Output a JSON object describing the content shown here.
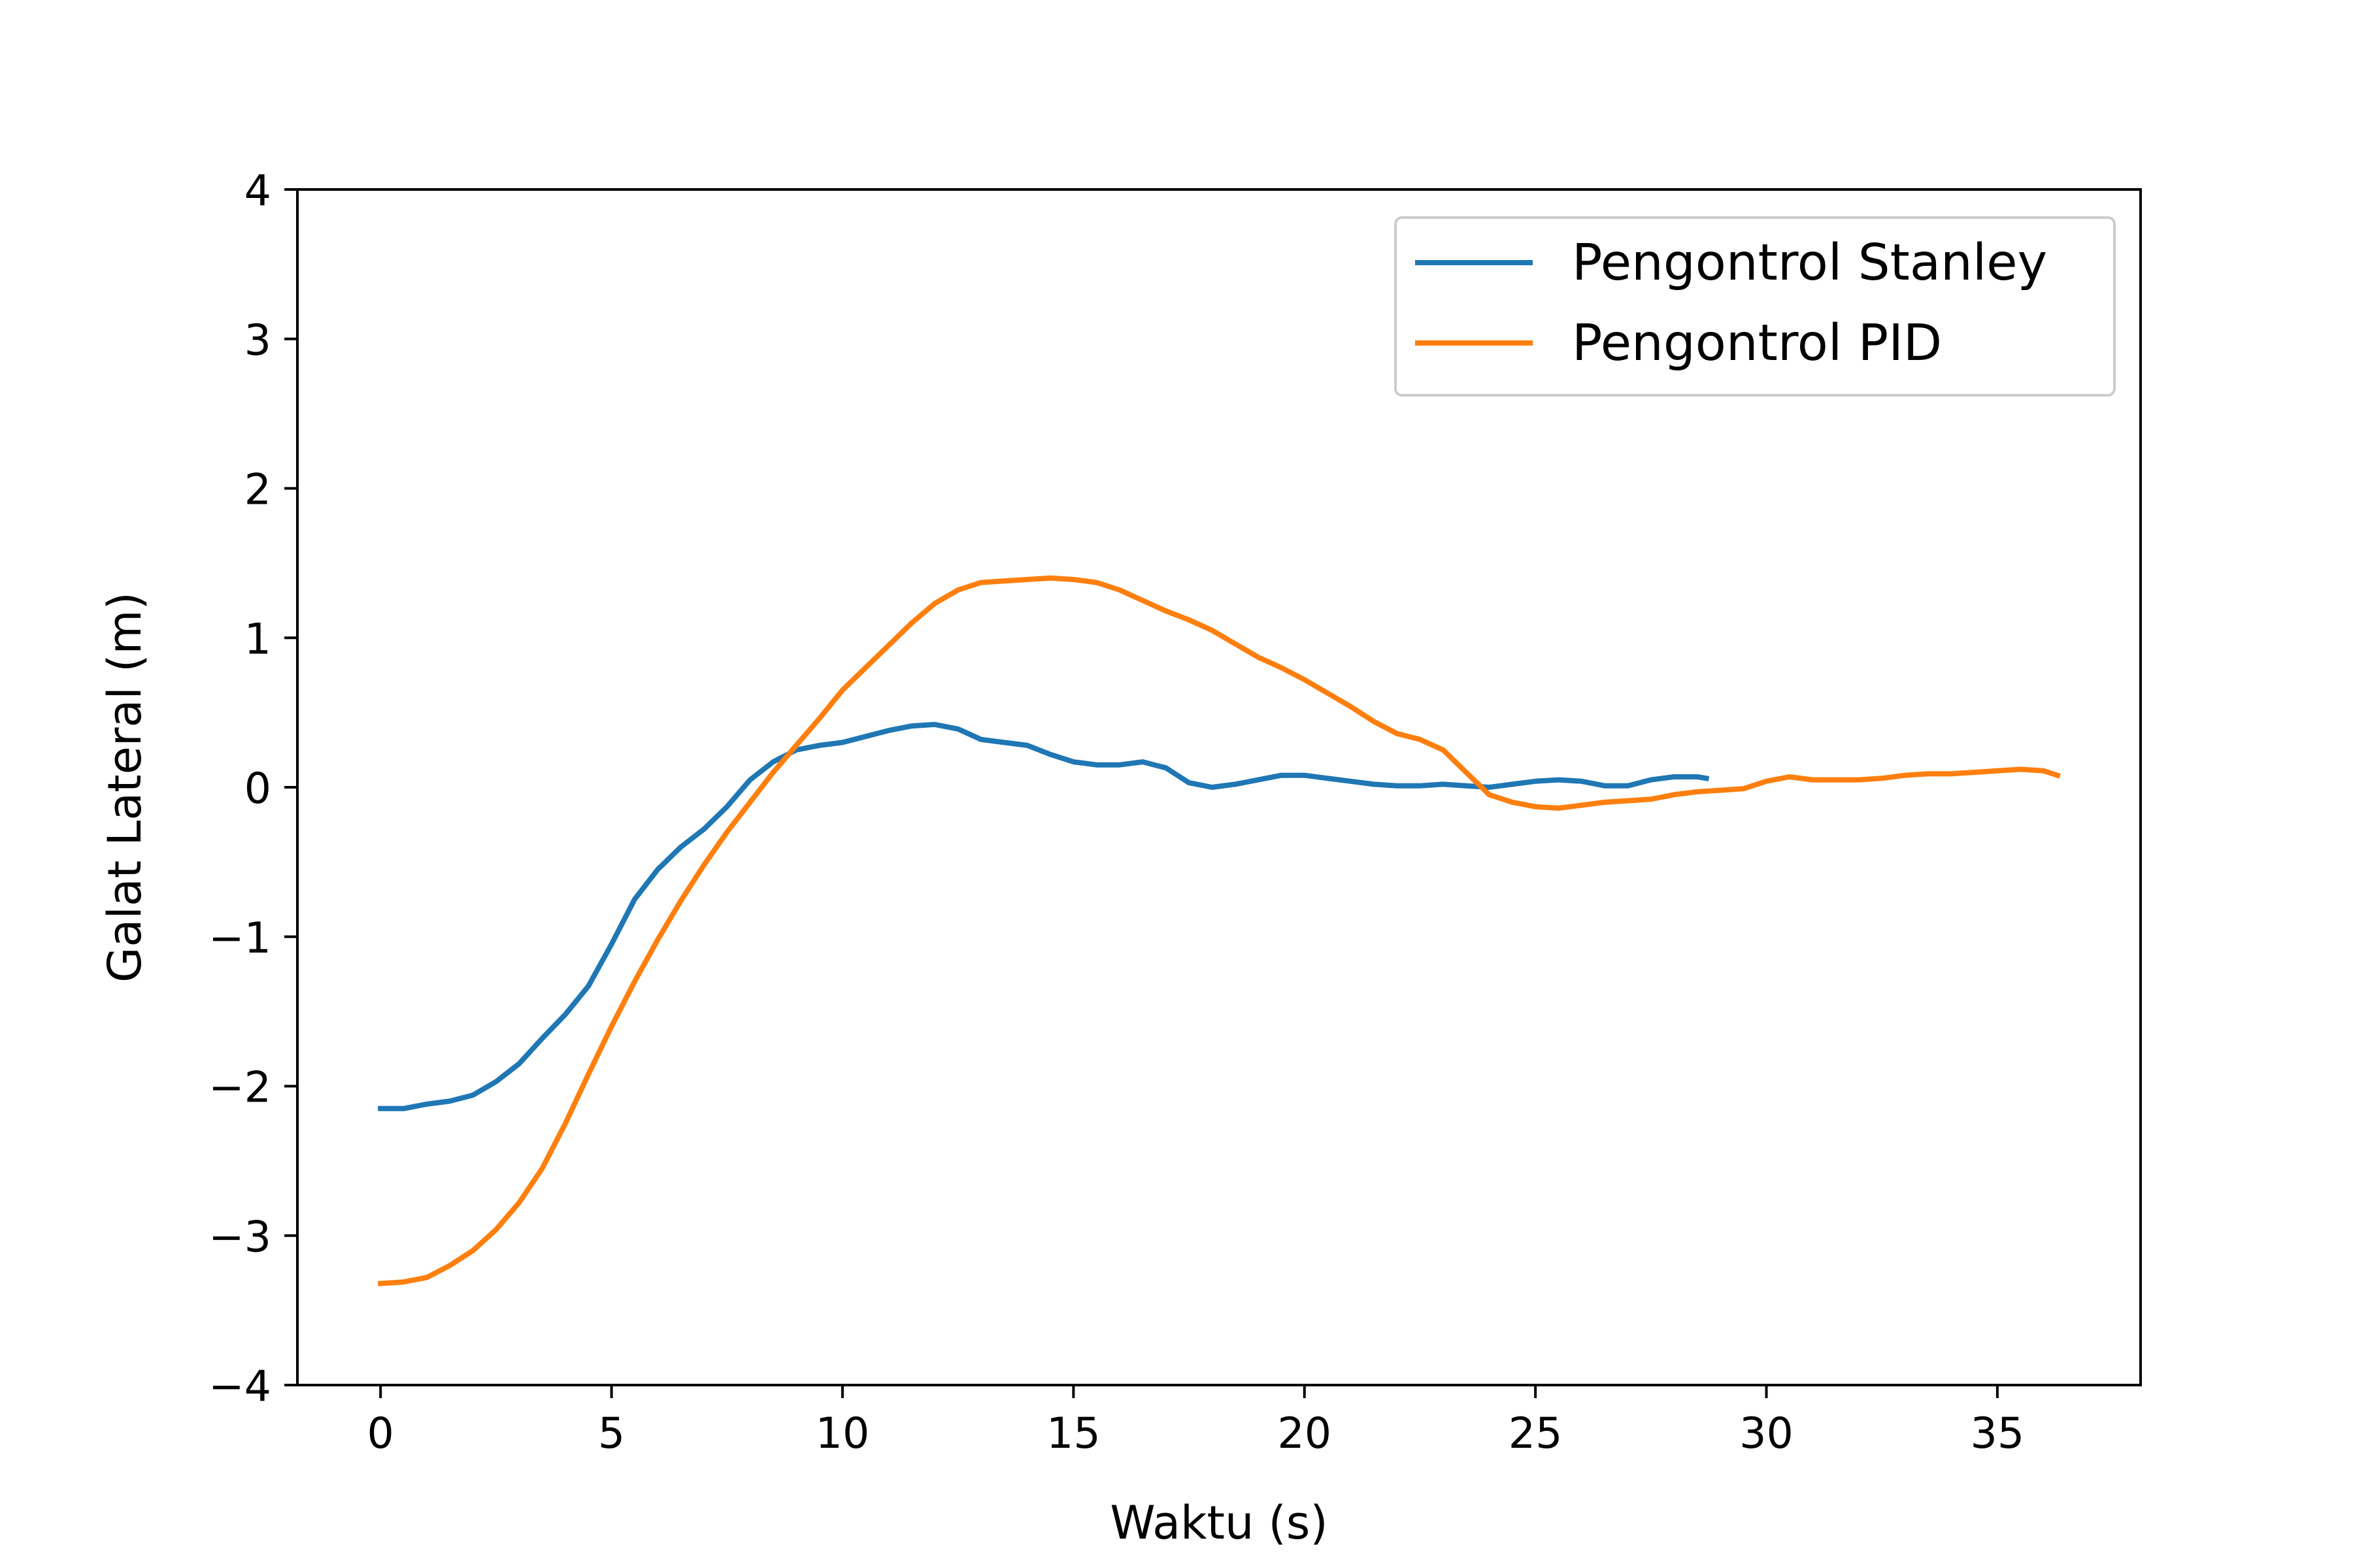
{
  "chart_data": {
    "type": "line",
    "title": "",
    "xlabel": "Waktu (s)",
    "ylabel": "Galat Lateral (m)",
    "xlim": [
      -1.8,
      38.1
    ],
    "ylim": [
      -4,
      4
    ],
    "xticks": [
      0,
      5,
      10,
      15,
      20,
      25,
      30,
      35
    ],
    "yticks": [
      -4,
      -3,
      -2,
      -1,
      0,
      1,
      2,
      3,
      4
    ],
    "xtick_labels": [
      "0",
      "5",
      "10",
      "15",
      "20",
      "25",
      "30",
      "35"
    ],
    "ytick_labels": [
      "−4",
      "−3",
      "−2",
      "−1",
      "0",
      "1",
      "2",
      "3",
      "4"
    ],
    "grid": false,
    "legend_position": "top-right",
    "series": [
      {
        "name": "Pengontrol Stanley",
        "color": "#1f77b4",
        "points": [
          [
            0,
            -2.15
          ],
          [
            0.5,
            -2.15
          ],
          [
            1,
            -2.12
          ],
          [
            1.5,
            -2.1
          ],
          [
            2,
            -2.06
          ],
          [
            2.5,
            -1.97
          ],
          [
            3,
            -1.85
          ],
          [
            3.5,
            -1.68
          ],
          [
            4,
            -1.52
          ],
          [
            4.5,
            -1.33
          ],
          [
            5,
            -1.05
          ],
          [
            5.5,
            -0.75
          ],
          [
            6,
            -0.55
          ],
          [
            6.5,
            -0.4
          ],
          [
            7,
            -0.28
          ],
          [
            7.5,
            -0.13
          ],
          [
            8,
            0.05
          ],
          [
            8.5,
            0.17
          ],
          [
            9,
            0.25
          ],
          [
            9.5,
            0.28
          ],
          [
            10,
            0.3
          ],
          [
            10.5,
            0.34
          ],
          [
            11,
            0.38
          ],
          [
            11.5,
            0.41
          ],
          [
            12,
            0.42
          ],
          [
            12.5,
            0.39
          ],
          [
            13,
            0.32
          ],
          [
            13.5,
            0.3
          ],
          [
            14,
            0.28
          ],
          [
            14.5,
            0.22
          ],
          [
            15,
            0.17
          ],
          [
            15.5,
            0.15
          ],
          [
            16,
            0.15
          ],
          [
            16.5,
            0.17
          ],
          [
            17,
            0.13
          ],
          [
            17.5,
            0.03
          ],
          [
            18,
            0.0
          ],
          [
            18.5,
            0.02
          ],
          [
            19,
            0.05
          ],
          [
            19.5,
            0.08
          ],
          [
            20,
            0.08
          ],
          [
            20.5,
            0.06
          ],
          [
            21,
            0.04
          ],
          [
            21.5,
            0.02
          ],
          [
            22,
            0.01
          ],
          [
            22.5,
            0.01
          ],
          [
            23,
            0.02
          ],
          [
            23.5,
            0.01
          ],
          [
            24,
            0.0
          ],
          [
            24.5,
            0.02
          ],
          [
            25,
            0.04
          ],
          [
            25.5,
            0.05
          ],
          [
            26,
            0.04
          ],
          [
            26.5,
            0.01
          ],
          [
            27,
            0.01
          ],
          [
            27.5,
            0.05
          ],
          [
            28,
            0.07
          ],
          [
            28.5,
            0.07
          ],
          [
            28.7,
            0.06
          ]
        ]
      },
      {
        "name": "Pengontrol PID",
        "color": "#ff7f0e",
        "points": [
          [
            0,
            -3.32
          ],
          [
            0.5,
            -3.31
          ],
          [
            1,
            -3.28
          ],
          [
            1.5,
            -3.2
          ],
          [
            2,
            -3.1
          ],
          [
            2.5,
            -2.96
          ],
          [
            3,
            -2.78
          ],
          [
            3.5,
            -2.55
          ],
          [
            4,
            -2.25
          ],
          [
            4.5,
            -1.92
          ],
          [
            5,
            -1.6
          ],
          [
            5.5,
            -1.3
          ],
          [
            6,
            -1.02
          ],
          [
            6.5,
            -0.76
          ],
          [
            7,
            -0.52
          ],
          [
            7.5,
            -0.3
          ],
          [
            8,
            -0.1
          ],
          [
            8.5,
            0.1
          ],
          [
            9,
            0.28
          ],
          [
            9.5,
            0.46
          ],
          [
            10,
            0.65
          ],
          [
            10.5,
            0.8
          ],
          [
            11,
            0.95
          ],
          [
            11.5,
            1.1
          ],
          [
            12,
            1.23
          ],
          [
            12.5,
            1.32
          ],
          [
            13,
            1.37
          ],
          [
            13.5,
            1.38
          ],
          [
            14,
            1.39
          ],
          [
            14.5,
            1.4
          ],
          [
            15,
            1.39
          ],
          [
            15.5,
            1.37
          ],
          [
            16,
            1.32
          ],
          [
            16.5,
            1.25
          ],
          [
            17,
            1.18
          ],
          [
            17.5,
            1.12
          ],
          [
            18,
            1.05
          ],
          [
            18.5,
            0.96
          ],
          [
            19,
            0.87
          ],
          [
            19.5,
            0.8
          ],
          [
            20,
            0.72
          ],
          [
            20.5,
            0.63
          ],
          [
            21,
            0.54
          ],
          [
            21.5,
            0.44
          ],
          [
            22,
            0.36
          ],
          [
            22.5,
            0.32
          ],
          [
            23,
            0.25
          ],
          [
            23.5,
            0.1
          ],
          [
            24,
            -0.05
          ],
          [
            24.5,
            -0.1
          ],
          [
            25,
            -0.13
          ],
          [
            25.5,
            -0.14
          ],
          [
            26,
            -0.12
          ],
          [
            26.5,
            -0.1
          ],
          [
            27,
            -0.09
          ],
          [
            27.5,
            -0.08
          ],
          [
            28,
            -0.05
          ],
          [
            28.5,
            -0.03
          ],
          [
            29,
            -0.02
          ],
          [
            29.5,
            -0.01
          ],
          [
            30,
            0.04
          ],
          [
            30.5,
            0.07
          ],
          [
            31,
            0.05
          ],
          [
            31.5,
            0.05
          ],
          [
            32,
            0.05
          ],
          [
            32.5,
            0.06
          ],
          [
            33,
            0.08
          ],
          [
            33.5,
            0.09
          ],
          [
            34,
            0.09
          ],
          [
            34.5,
            0.1
          ],
          [
            35,
            0.11
          ],
          [
            35.5,
            0.12
          ],
          [
            36,
            0.11
          ],
          [
            36.3,
            0.08
          ]
        ]
      }
    ]
  }
}
